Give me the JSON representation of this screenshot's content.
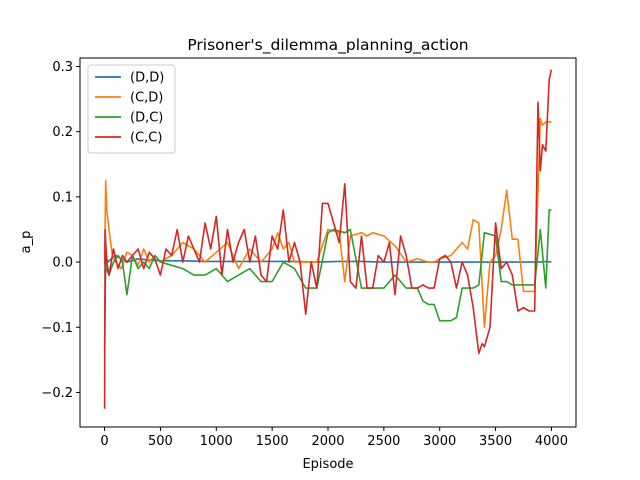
{
  "chart_data": {
    "type": "line",
    "title": "Prisoner's_dilemma_planning_action",
    "xlabel": "Episode",
    "ylabel": "a_p",
    "xlim": [
      -220,
      4220
    ],
    "ylim": [
      -0.253,
      0.313
    ],
    "xticks": [
      0,
      500,
      1000,
      1500,
      2000,
      2500,
      3000,
      3500,
      4000
    ],
    "yticks": [
      -0.2,
      -0.1,
      0.0,
      0.1,
      0.2,
      0.3
    ],
    "ytick_labels": [
      "−0.2",
      "−0.1",
      "0.0",
      "0.1",
      "0.2",
      "0.3"
    ],
    "grid": false,
    "legend": "top-left",
    "series": [
      {
        "name": "(D,D)",
        "color": "#1f77b4",
        "x": [
          0,
          10,
          30,
          60,
          100,
          150,
          200,
          300,
          400,
          500,
          700,
          900,
          1100,
          1300,
          1500,
          1700,
          1900,
          2100,
          2300,
          2500,
          2700,
          2900,
          3100,
          3300,
          3500,
          3700,
          3900,
          3950,
          4000
        ],
        "y": [
          -0.14,
          0.01,
          0.0,
          0.005,
          0.01,
          0.005,
          0.0,
          0.005,
          0.003,
          0.002,
          0.002,
          0.001,
          0.001,
          0.001,
          0.001,
          0.001,
          0.0,
          0.001,
          0.001,
          0.0,
          0.0,
          0.0,
          0.0,
          0.0,
          0.0,
          0.0,
          0.0,
          0.001,
          0.0
        ]
      },
      {
        "name": "(C,D)",
        "color": "#ff7f0e",
        "x": [
          0,
          10,
          20,
          40,
          70,
          100,
          150,
          200,
          250,
          300,
          350,
          400,
          450,
          500,
          600,
          700,
          800,
          900,
          1000,
          1100,
          1200,
          1300,
          1400,
          1500,
          1550,
          1600,
          1650,
          1700,
          1750,
          1800,
          1900,
          2000,
          2100,
          2150,
          2200,
          2300,
          2350,
          2400,
          2500,
          2600,
          2700,
          2800,
          2900,
          2950,
          3000,
          3100,
          3200,
          3250,
          3300,
          3350,
          3400,
          3450,
          3500,
          3550,
          3600,
          3650,
          3700,
          3750,
          3800,
          3850,
          3900,
          3920,
          3950,
          4000
        ],
        "y": [
          0.0,
          0.125,
          0.08,
          0.05,
          0.01,
          0.0,
          -0.01,
          0.015,
          0.01,
          -0.005,
          0.02,
          0.0,
          0.01,
          0.0,
          0.01,
          0.03,
          0.02,
          0.0,
          0.015,
          0.03,
          -0.01,
          0.02,
          0.0,
          0.02,
          0.045,
          0.02,
          0.03,
          0.0,
          0.0,
          0.0,
          0.0,
          0.05,
          0.045,
          -0.03,
          0.04,
          0.045,
          0.04,
          0.045,
          0.04,
          0.025,
          0.0,
          0.005,
          0.0,
          0.0,
          0.005,
          0.01,
          0.03,
          0.02,
          0.065,
          0.06,
          -0.1,
          0.0,
          0.01,
          0.05,
          0.11,
          0.035,
          0.035,
          -0.045,
          -0.045,
          -0.045,
          0.22,
          0.21,
          0.215,
          0.215
        ]
      },
      {
        "name": "(D,C)",
        "color": "#2ca02c",
        "x": [
          0,
          15,
          40,
          80,
          120,
          160,
          200,
          250,
          300,
          350,
          400,
          450,
          500,
          600,
          700,
          800,
          900,
          1000,
          1100,
          1200,
          1300,
          1400,
          1500,
          1600,
          1700,
          1800,
          1900,
          2000,
          2050,
          2150,
          2200,
          2300,
          2400,
          2500,
          2600,
          2700,
          2800,
          2850,
          2900,
          2950,
          3000,
          3050,
          3100,
          3150,
          3200,
          3300,
          3350,
          3400,
          3500,
          3550,
          3600,
          3650,
          3700,
          3800,
          3850,
          3900,
          3950,
          3980,
          4000
        ],
        "y": [
          0.0,
          -0.01,
          -0.02,
          0.0,
          0.01,
          0.0,
          -0.05,
          0.01,
          -0.01,
          0.0,
          -0.01,
          0.01,
          0.0,
          -0.005,
          -0.01,
          -0.02,
          -0.02,
          -0.01,
          -0.03,
          -0.02,
          -0.01,
          -0.03,
          -0.03,
          0.0,
          -0.01,
          -0.04,
          -0.04,
          0.045,
          0.05,
          0.045,
          0.05,
          -0.04,
          -0.04,
          -0.04,
          -0.02,
          -0.04,
          -0.04,
          -0.06,
          -0.065,
          -0.065,
          -0.09,
          -0.09,
          -0.09,
          -0.085,
          -0.04,
          -0.04,
          -0.035,
          0.045,
          0.04,
          -0.03,
          -0.03,
          -0.035,
          -0.035,
          -0.035,
          -0.035,
          0.05,
          -0.04,
          0.08,
          0.08
        ]
      },
      {
        "name": "(C,C)",
        "color": "#d62728",
        "x": [
          0,
          5,
          10,
          20,
          40,
          80,
          120,
          160,
          200,
          250,
          300,
          350,
          400,
          450,
          500,
          550,
          600,
          650,
          700,
          750,
          800,
          850,
          900,
          950,
          1000,
          1050,
          1100,
          1150,
          1200,
          1250,
          1300,
          1350,
          1400,
          1450,
          1500,
          1550,
          1600,
          1650,
          1700,
          1750,
          1800,
          1850,
          1900,
          1950,
          2000,
          2100,
          2150,
          2200,
          2250,
          2300,
          2350,
          2400,
          2450,
          2500,
          2550,
          2600,
          2650,
          2700,
          2750,
          2800,
          2850,
          2900,
          2950,
          3000,
          3050,
          3100,
          3150,
          3200,
          3250,
          3300,
          3350,
          3380,
          3400,
          3450,
          3500,
          3550,
          3600,
          3650,
          3700,
          3750,
          3800,
          3850,
          3880,
          3900,
          3920,
          3950,
          3980,
          4000
        ],
        "y": [
          -0.225,
          0.05,
          0.03,
          0.0,
          -0.02,
          0.02,
          -0.01,
          0.01,
          0.0,
          0.01,
          0.02,
          -0.01,
          0.015,
          0.005,
          -0.02,
          0.02,
          0.01,
          0.05,
          0.0,
          0.04,
          0.02,
          0.0,
          0.06,
          0.02,
          0.07,
          -0.02,
          0.05,
          0.0,
          0.03,
          0.05,
          0.0,
          0.04,
          -0.02,
          -0.03,
          0.04,
          0.02,
          0.08,
          0.0,
          0.03,
          0.0,
          -0.08,
          0.0,
          -0.04,
          0.09,
          0.09,
          0.03,
          0.12,
          -0.03,
          -0.04,
          0.04,
          -0.04,
          -0.04,
          0.01,
          0.0,
          0.03,
          -0.05,
          0.04,
          0.01,
          -0.04,
          -0.04,
          -0.035,
          -0.04,
          -0.04,
          0.005,
          0.01,
          0.0,
          -0.04,
          0.0,
          -0.02,
          -0.07,
          -0.14,
          -0.125,
          -0.13,
          -0.1,
          0.06,
          -0.01,
          0.0,
          -0.02,
          -0.075,
          -0.07,
          -0.075,
          -0.075,
          0.245,
          0.14,
          0.18,
          0.17,
          0.28,
          0.295
        ]
      }
    ]
  }
}
